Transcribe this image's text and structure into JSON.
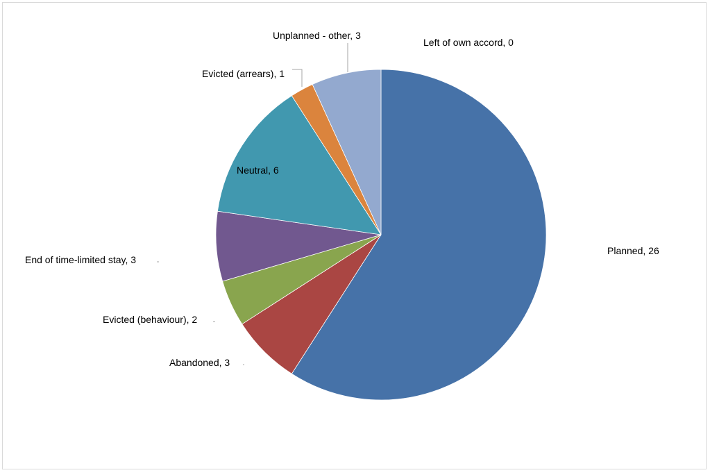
{
  "chart_data": {
    "type": "pie",
    "title": "",
    "slices": [
      {
        "label": "Planned",
        "value": 26,
        "text": "Planned, 26",
        "color": "#4672A8"
      },
      {
        "label": "Abandoned",
        "value": 3,
        "text": "Abandoned, 3",
        "color": "#AA4643"
      },
      {
        "label": "Evicted (behaviour)",
        "value": 2,
        "text": "Evicted (behaviour), 2",
        "color": "#89A54E"
      },
      {
        "label": "End of time-limited stay",
        "value": 3,
        "text": "End of time-limited stay, 3",
        "color": "#71588F"
      },
      {
        "label": "Neutral",
        "value": 6,
        "text": "Neutral, 6",
        "color": "#4198AF"
      },
      {
        "label": "Evicted (arrears)",
        "value": 1,
        "text": "Evicted (arrears), 1",
        "color": "#DB843D"
      },
      {
        "label": "Unplanned - other",
        "value": 3,
        "text": "Unplanned - other, 3",
        "color": "#93A9CF"
      },
      {
        "label": "Left of own accord",
        "value": 0,
        "text": "Left of own accord, 0",
        "color": "#B9CD96"
      }
    ],
    "start_angle_deg": 0,
    "direction": "clockwise",
    "legend": "none",
    "data_labels": "outside with leader lines"
  }
}
